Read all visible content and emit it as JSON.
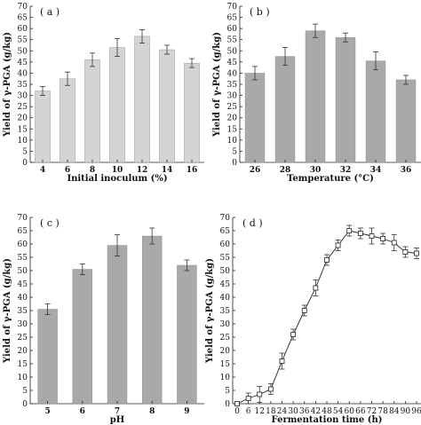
{
  "chart_data": [
    {
      "type": "bar",
      "panel_label": "( a )",
      "xlabel": "Initial inoculum (%)",
      "ylabel": "Yield of γ-PGA (g/kg)",
      "ylim": [
        0,
        70
      ],
      "yticks": [
        0,
        5,
        10,
        15,
        20,
        25,
        30,
        35,
        40,
        45,
        50,
        55,
        60,
        65,
        70
      ],
      "categories": [
        "4",
        "6",
        "8",
        "10",
        "12",
        "14",
        "16"
      ],
      "values": [
        32,
        37.5,
        46,
        51.5,
        56.5,
        50.5,
        44.5
      ],
      "errors": [
        2,
        3,
        3,
        4,
        3,
        2,
        2
      ],
      "bar_color": "#d4d4d4"
    },
    {
      "type": "bar",
      "panel_label": "( b )",
      "xlabel": "Temperature (°C)",
      "ylabel": "Yield of γ-PGA (g/kg)",
      "ylim": [
        0,
        70
      ],
      "yticks": [
        0,
        5,
        10,
        15,
        20,
        25,
        30,
        35,
        40,
        45,
        50,
        55,
        60,
        65,
        70
      ],
      "categories": [
        "26",
        "28",
        "30",
        "32",
        "34",
        "36"
      ],
      "values": [
        40,
        47.5,
        59,
        56,
        45.5,
        37
      ],
      "errors": [
        3,
        4,
        3,
        2,
        4,
        2
      ],
      "bar_color": "#a9a9a9"
    },
    {
      "type": "bar",
      "panel_label": "( c )",
      "xlabel": "pH",
      "ylabel": "Yield of γ-PGA (g/kg)",
      "ylim": [
        0,
        70
      ],
      "yticks": [
        0,
        5,
        10,
        15,
        20,
        25,
        30,
        35,
        40,
        45,
        50,
        55,
        60,
        65,
        70
      ],
      "categories": [
        "5",
        "6",
        "7",
        "8",
        "9"
      ],
      "values": [
        35.5,
        50.5,
        59.5,
        63,
        52
      ],
      "errors": [
        2,
        2,
        4,
        3,
        2
      ],
      "bar_color": "#a9a9a9"
    },
    {
      "type": "line",
      "panel_label": "( d )",
      "xlabel": "Fermentation time (h)",
      "ylabel": "Yield of γ-PGA (g/kg)",
      "ylim": [
        0,
        70
      ],
      "xlim": [
        0,
        96
      ],
      "yticks": [
        0,
        5,
        10,
        15,
        20,
        25,
        30,
        35,
        40,
        45,
        50,
        55,
        60,
        65,
        70
      ],
      "xticks": [
        0,
        6,
        12,
        18,
        24,
        30,
        36,
        42,
        48,
        54,
        60,
        66,
        72,
        78,
        84,
        90,
        96
      ],
      "x": [
        0,
        6,
        12,
        18,
        24,
        30,
        36,
        42,
        48,
        54,
        60,
        66,
        72,
        78,
        84,
        90,
        96
      ],
      "y": [
        0,
        2,
        3.5,
        5.5,
        16,
        26,
        35,
        43.5,
        54,
        59.5,
        65,
        64,
        63,
        62,
        60.5,
        57,
        56.5
      ],
      "errors": [
        0.5,
        2,
        3,
        2,
        3,
        2,
        2,
        3,
        2,
        2,
        2,
        2,
        3,
        2,
        3,
        2,
        2
      ],
      "marker": "square"
    }
  ]
}
